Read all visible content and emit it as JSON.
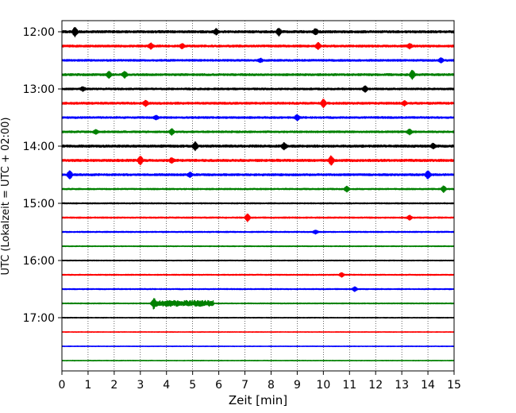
{
  "chart_data": {
    "type": "line",
    "title": "",
    "xlabel": "Zeit  [min]",
    "ylabel": "UTC (Lokalzeit = UTC + 02:00)",
    "xlim": [
      0,
      15
    ],
    "x_ticks": [
      0,
      1,
      2,
      3,
      4,
      5,
      6,
      7,
      8,
      9,
      10,
      11,
      12,
      13,
      14,
      15
    ],
    "x_tick_labels": [
      "0",
      "1",
      "2",
      "3",
      "4",
      "5",
      "6",
      "7",
      "8",
      "9",
      "10",
      "11",
      "12",
      "13",
      "14",
      "15"
    ],
    "y_tick_labels": [
      "12:00",
      "13:00",
      "14:00",
      "15:00",
      "16:00",
      "17:00"
    ],
    "vertical_grid": "dotted at each minute",
    "colors": [
      "#000000",
      "#ff0000",
      "#0000ff",
      "#008000"
    ],
    "traces": [
      {
        "start": "12:00",
        "color": "#000000",
        "amplitude": 1.0,
        "events": [
          [
            0.5,
            1.0
          ],
          [
            8.3,
            0.8
          ],
          [
            9.7,
            0.6
          ],
          [
            5.9,
            0.6
          ]
        ]
      },
      {
        "start": "12:15",
        "color": "#ff0000",
        "amplitude": 0.9,
        "events": [
          [
            3.4,
            0.6
          ],
          [
            4.6,
            0.5
          ],
          [
            9.8,
            0.7
          ],
          [
            13.3,
            0.5
          ]
        ]
      },
      {
        "start": "12:30",
        "color": "#0000ff",
        "amplitude": 0.8,
        "events": [
          [
            7.6,
            0.4
          ],
          [
            14.5,
            0.5
          ]
        ]
      },
      {
        "start": "12:45",
        "color": "#008000",
        "amplitude": 0.9,
        "events": [
          [
            1.8,
            0.7
          ],
          [
            2.4,
            0.7
          ],
          [
            13.4,
            1.0
          ]
        ]
      },
      {
        "start": "13:00",
        "color": "#000000",
        "amplitude": 0.8,
        "events": [
          [
            11.6,
            0.7
          ],
          [
            0.8,
            0.4
          ]
        ]
      },
      {
        "start": "13:15",
        "color": "#ff0000",
        "amplitude": 0.9,
        "events": [
          [
            3.2,
            0.6
          ],
          [
            10.0,
            0.9
          ],
          [
            13.1,
            0.5
          ]
        ]
      },
      {
        "start": "13:30",
        "color": "#0000ff",
        "amplitude": 0.8,
        "events": [
          [
            9.0,
            0.6
          ],
          [
            3.6,
            0.4
          ]
        ]
      },
      {
        "start": "13:45",
        "color": "#008000",
        "amplitude": 0.8,
        "events": [
          [
            4.2,
            0.7
          ],
          [
            13.3,
            0.6
          ],
          [
            1.3,
            0.4
          ]
        ]
      },
      {
        "start": "14:00",
        "color": "#000000",
        "amplitude": 1.0,
        "events": [
          [
            5.1,
            0.9
          ],
          [
            8.5,
            0.7
          ],
          [
            14.2,
            0.5
          ]
        ]
      },
      {
        "start": "14:15",
        "color": "#ff0000",
        "amplitude": 1.0,
        "events": [
          [
            3.0,
            1.0
          ],
          [
            10.3,
            1.0
          ],
          [
            4.2,
            0.5
          ]
        ]
      },
      {
        "start": "14:30",
        "color": "#0000ff",
        "amplitude": 0.9,
        "events": [
          [
            0.3,
            0.9
          ],
          [
            14.0,
            0.9
          ],
          [
            4.9,
            0.5
          ]
        ]
      },
      {
        "start": "14:45",
        "color": "#008000",
        "amplitude": 0.6,
        "events": [
          [
            10.9,
            0.6
          ],
          [
            14.6,
            0.7
          ]
        ]
      },
      {
        "start": "15:00",
        "color": "#000000",
        "amplitude": 0.5,
        "events": []
      },
      {
        "start": "15:15",
        "color": "#ff0000",
        "amplitude": 0.55,
        "events": [
          [
            7.1,
            0.9
          ],
          [
            13.3,
            0.5
          ]
        ]
      },
      {
        "start": "15:30",
        "color": "#0000ff",
        "amplitude": 0.5,
        "events": [
          [
            9.7,
            0.4
          ]
        ]
      },
      {
        "start": "15:45",
        "color": "#008000",
        "amplitude": 0.35,
        "events": []
      },
      {
        "start": "16:00",
        "color": "#000000",
        "amplitude": 0.35,
        "events": []
      },
      {
        "start": "16:15",
        "color": "#ff0000",
        "amplitude": 0.45,
        "events": [
          [
            10.7,
            0.5
          ]
        ]
      },
      {
        "start": "16:30",
        "color": "#0000ff",
        "amplitude": 0.45,
        "events": [
          [
            11.2,
            0.5
          ]
        ]
      },
      {
        "start": "16:45",
        "color": "#008000",
        "amplitude": 0.4,
        "events": [
          [
            3.5,
            0.9
          ]
        ],
        "burst": [
          3.5,
          5.8,
          0.7
        ]
      },
      {
        "start": "17:00",
        "color": "#000000",
        "amplitude": 0.3,
        "events": []
      },
      {
        "start": "17:15",
        "color": "#ff0000",
        "amplitude": 0.25,
        "events": []
      },
      {
        "start": "17:30",
        "color": "#0000ff",
        "amplitude": 0.25,
        "events": []
      },
      {
        "start": "17:45",
        "color": "#008000",
        "amplitude": 0.25,
        "events": []
      }
    ]
  }
}
